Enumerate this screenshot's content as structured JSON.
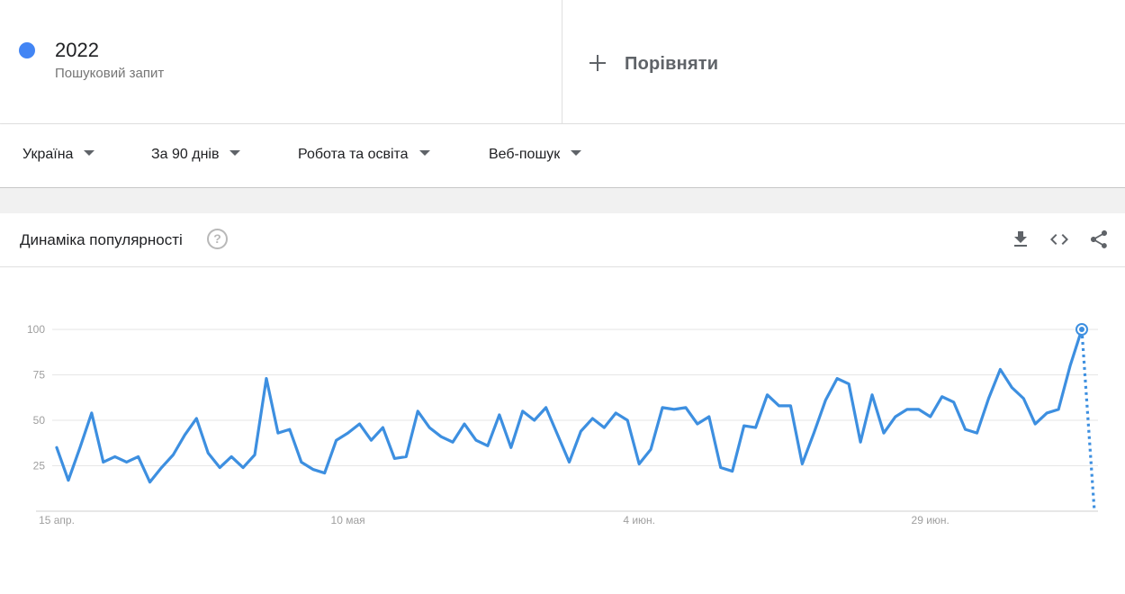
{
  "term": {
    "name": "2022",
    "subtitle": "Пошуковий запит",
    "color": "#4285f4"
  },
  "compare": {
    "label": "Порівняти"
  },
  "filters": {
    "region": "Україна",
    "period": "За 90 днів",
    "category": "Робота та освіта",
    "search_type": "Веб-пошук"
  },
  "card": {
    "title": "Динаміка популярності",
    "help_icon": "question-circle-icon",
    "icons": [
      "download-icon",
      "embed-code-icon",
      "share-icon"
    ]
  },
  "chart_data": {
    "type": "line",
    "title": "Динаміка популярності",
    "xlabel": "",
    "ylabel": "",
    "ylim": [
      0,
      100
    ],
    "y_ticks": [
      25,
      50,
      75,
      100
    ],
    "x_ticks": [
      {
        "label": "15 апр.",
        "index": 0
      },
      {
        "label": "10 мая",
        "index": 25
      },
      {
        "label": "4 июн.",
        "index": 50
      },
      {
        "label": "29 июн.",
        "index": 75
      }
    ],
    "grid": true,
    "line_color": "#3d8fe0",
    "series": [
      {
        "values": [
          35,
          17,
          35,
          54,
          27,
          30,
          27,
          30,
          16,
          24,
          31,
          42,
          51,
          32,
          24,
          30,
          24,
          31,
          73,
          43,
          45,
          27,
          23,
          21,
          39,
          43,
          48,
          39,
          46,
          29,
          30,
          55,
          46,
          41,
          38,
          48,
          39,
          36,
          53,
          35,
          55,
          50,
          57,
          42,
          27,
          44,
          51,
          46,
          54,
          50,
          26,
          34,
          57,
          56,
          57,
          48,
          52,
          24,
          22,
          47,
          46,
          64,
          58,
          58,
          26,
          43,
          61,
          73,
          70,
          38,
          64,
          43,
          52,
          56,
          56,
          52,
          63,
          60,
          45,
          43,
          62,
          78,
          68,
          62,
          48,
          54,
          56,
          80,
          100
        ],
        "partial_end": 0
      }
    ]
  }
}
